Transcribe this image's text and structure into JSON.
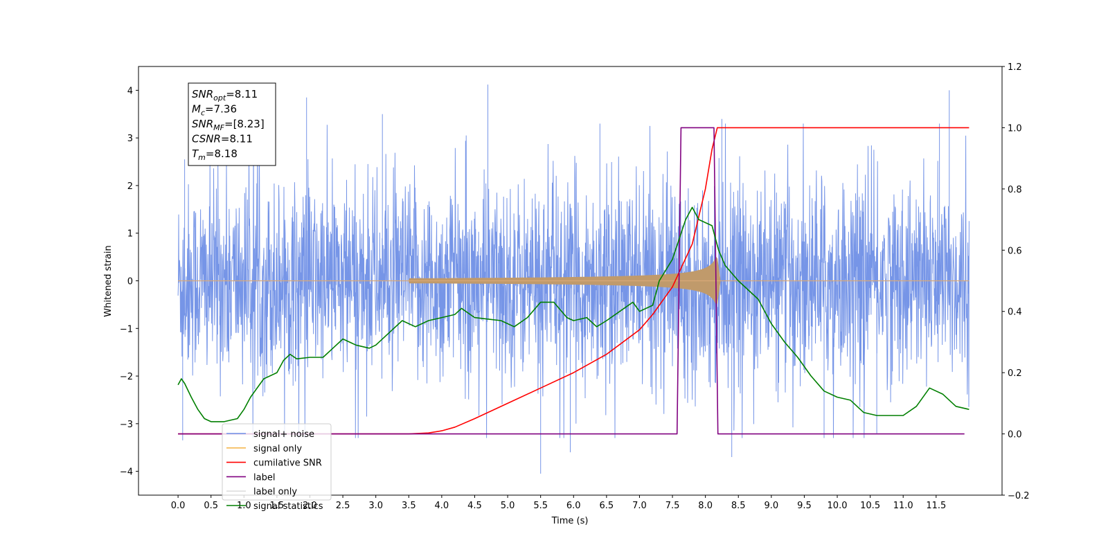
{
  "chart_data": {
    "type": "line",
    "xlabel": "Time (s)",
    "ylabel": "Whitened strain",
    "xlim": [
      -0.6,
      12.5
    ],
    "ylim": [
      -4.5,
      4.5
    ],
    "y2lim": [
      -0.2,
      1.2
    ],
    "x_ticks": [
      "0.0",
      "0.5",
      "1.0",
      "1.5",
      "2.0",
      "2.5",
      "3.0",
      "3.5",
      "4.0",
      "4.5",
      "5.0",
      "5.5",
      "6.0",
      "6.5",
      "7.0",
      "7.5",
      "8.0",
      "8.5",
      "9.0",
      "9.5",
      "10.0",
      "10.5",
      "11.0",
      "11.5"
    ],
    "y_ticks": [
      "4",
      "3",
      "2",
      "1",
      "0",
      "−1",
      "−2",
      "−3",
      "−4"
    ],
    "y2_ticks": [
      "1.2",
      "1.0",
      "0.8",
      "0.6",
      "0.4",
      "0.2",
      "0.0",
      "−0.2"
    ],
    "grid": false,
    "legend_position": "lower-left",
    "info_box": [
      {
        "name": "SNR",
        "sub": "opt",
        "value": "=8.11"
      },
      {
        "name": "M",
        "sub": "c",
        "value": "=7.36"
      },
      {
        "name": "SNR",
        "sub": "MF",
        "value": "=[8.23]"
      },
      {
        "name": "CSNR",
        "sub": "",
        "value": "=8.11"
      },
      {
        "name": "T",
        "sub": "m",
        "value": "=8.18"
      }
    ],
    "series": [
      {
        "name": "signal+ noise",
        "color": "#6f8fe6",
        "axis": "left",
        "x_range": [
          0.0,
          12.0
        ],
        "envelope_typical": 2.5,
        "peaks": [
          [
            0.07,
            -3.35
          ],
          [
            1.95,
            3.85
          ],
          [
            4.7,
            4.12
          ],
          [
            5.5,
            -4.05
          ],
          [
            5.95,
            -3.6
          ],
          [
            8.25,
            3.4
          ],
          [
            8.4,
            -3.7
          ],
          [
            9.8,
            -3.3
          ],
          [
            11.7,
            4.0
          ],
          [
            11.55,
            3.3
          ],
          [
            0.1,
            2.55
          ],
          [
            3.1,
            3.5
          ],
          [
            6.4,
            3.3
          ],
          [
            10.6,
            -3.2
          ]
        ]
      },
      {
        "name": "signal only",
        "color": "#f5b850",
        "axis": "left",
        "chirp_start": 3.5,
        "merger": 8.18,
        "peak_amplitude": 0.5
      },
      {
        "name": "cumilative SNR",
        "color": "#ff0000",
        "axis": "right",
        "points": [
          [
            0.0,
            0.0
          ],
          [
            3.5,
            0.0
          ],
          [
            3.8,
            0.003
          ],
          [
            4.0,
            0.01
          ],
          [
            4.2,
            0.022
          ],
          [
            4.5,
            0.05
          ],
          [
            5.0,
            0.1
          ],
          [
            5.5,
            0.15
          ],
          [
            6.0,
            0.2
          ],
          [
            6.5,
            0.26
          ],
          [
            7.0,
            0.34
          ],
          [
            7.2,
            0.39
          ],
          [
            7.5,
            0.48
          ],
          [
            7.8,
            0.62
          ],
          [
            8.0,
            0.8
          ],
          [
            8.1,
            0.93
          ],
          [
            8.18,
            1.0
          ],
          [
            12.0,
            1.0
          ]
        ]
      },
      {
        "name": "label",
        "color": "#800080",
        "axis": "right",
        "points": [
          [
            0.0,
            0.0
          ],
          [
            7.57,
            0.0
          ],
          [
            7.63,
            1.0
          ],
          [
            8.13,
            1.0
          ],
          [
            8.19,
            0.0
          ],
          [
            11.93,
            0.0
          ]
        ]
      },
      {
        "name": "label only",
        "color": "#dddddd",
        "axis": "right",
        "points": []
      },
      {
        "name": "signal statistics",
        "color": "#007f00",
        "axis": "right",
        "points": [
          [
            0.0,
            0.16
          ],
          [
            0.05,
            0.18
          ],
          [
            0.1,
            0.165
          ],
          [
            0.2,
            0.12
          ],
          [
            0.3,
            0.08
          ],
          [
            0.4,
            0.05
          ],
          [
            0.5,
            0.04
          ],
          [
            0.7,
            0.04
          ],
          [
            0.9,
            0.05
          ],
          [
            1.0,
            0.08
          ],
          [
            1.1,
            0.12
          ],
          [
            1.3,
            0.18
          ],
          [
            1.5,
            0.2
          ],
          [
            1.6,
            0.24
          ],
          [
            1.7,
            0.26
          ],
          [
            1.8,
            0.245
          ],
          [
            2.0,
            0.25
          ],
          [
            2.2,
            0.25
          ],
          [
            2.4,
            0.29
          ],
          [
            2.5,
            0.31
          ],
          [
            2.7,
            0.29
          ],
          [
            2.9,
            0.28
          ],
          [
            3.0,
            0.29
          ],
          [
            3.2,
            0.33
          ],
          [
            3.4,
            0.37
          ],
          [
            3.6,
            0.35
          ],
          [
            3.8,
            0.37
          ],
          [
            4.0,
            0.38
          ],
          [
            4.2,
            0.39
          ],
          [
            4.3,
            0.41
          ],
          [
            4.5,
            0.38
          ],
          [
            4.7,
            0.375
          ],
          [
            4.9,
            0.37
          ],
          [
            5.1,
            0.35
          ],
          [
            5.3,
            0.38
          ],
          [
            5.5,
            0.43
          ],
          [
            5.7,
            0.43
          ],
          [
            5.9,
            0.38
          ],
          [
            6.0,
            0.37
          ],
          [
            6.2,
            0.38
          ],
          [
            6.35,
            0.35
          ],
          [
            6.5,
            0.37
          ],
          [
            6.7,
            0.4
          ],
          [
            6.9,
            0.43
          ],
          [
            7.0,
            0.4
          ],
          [
            7.2,
            0.42
          ],
          [
            7.3,
            0.5
          ],
          [
            7.5,
            0.57
          ],
          [
            7.7,
            0.7
          ],
          [
            7.8,
            0.74
          ],
          [
            7.9,
            0.7
          ],
          [
            8.0,
            0.69
          ],
          [
            8.1,
            0.68
          ],
          [
            8.2,
            0.6
          ],
          [
            8.3,
            0.55
          ],
          [
            8.5,
            0.5
          ],
          [
            8.8,
            0.44
          ],
          [
            9.0,
            0.36
          ],
          [
            9.2,
            0.3
          ],
          [
            9.4,
            0.25
          ],
          [
            9.6,
            0.19
          ],
          [
            9.8,
            0.14
          ],
          [
            10.0,
            0.12
          ],
          [
            10.2,
            0.11
          ],
          [
            10.4,
            0.07
          ],
          [
            10.6,
            0.06
          ],
          [
            10.8,
            0.06
          ],
          [
            11.0,
            0.06
          ],
          [
            11.2,
            0.09
          ],
          [
            11.4,
            0.15
          ],
          [
            11.6,
            0.13
          ],
          [
            11.8,
            0.09
          ],
          [
            12.0,
            0.08
          ]
        ]
      }
    ]
  },
  "colors": {
    "noise": "#6f8fe6",
    "signal": "#f5b850",
    "cumsnr": "#ff0000",
    "label": "#800080",
    "stats": "#007f00"
  }
}
